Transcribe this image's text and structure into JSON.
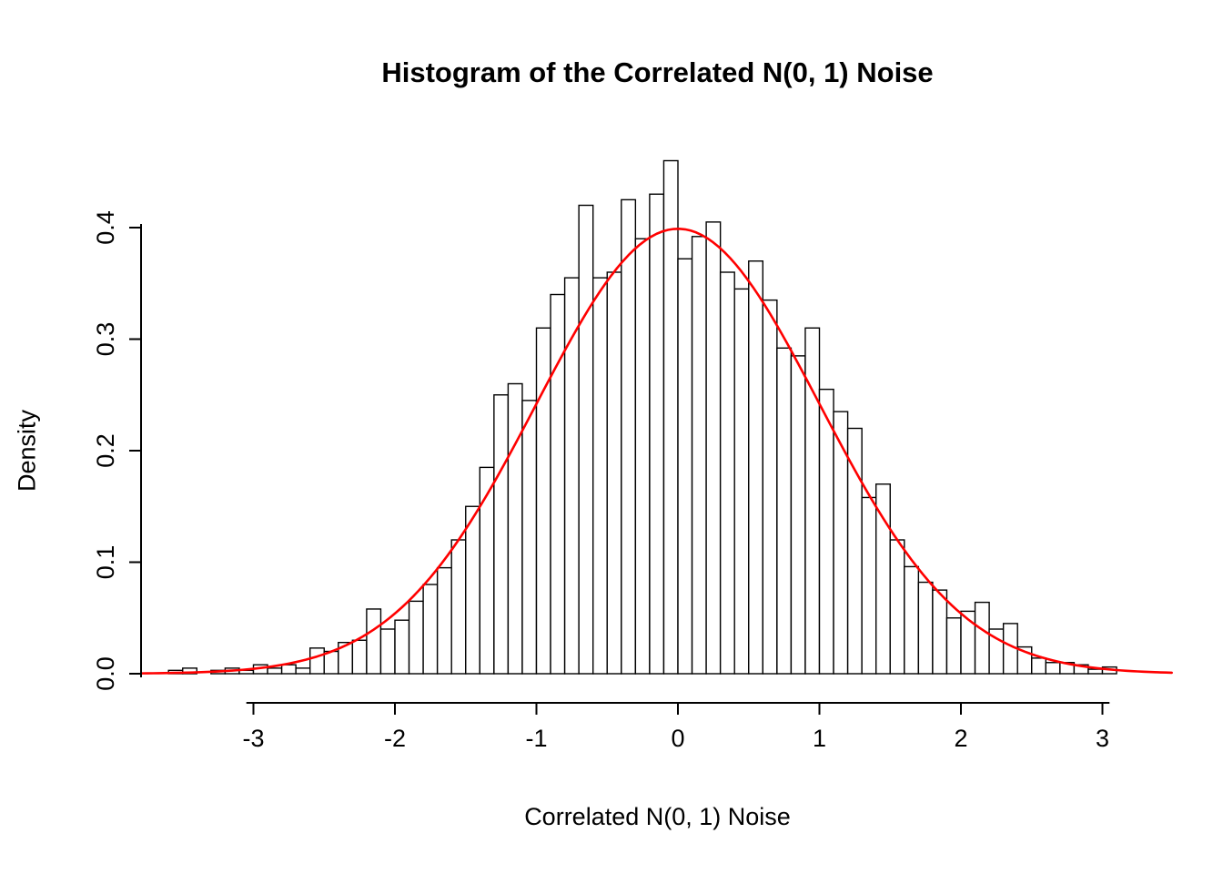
{
  "chart_data": {
    "type": "bar",
    "subtype": "histogram-with-density-curve",
    "title": "Histogram of the Correlated N(0, 1) Noise",
    "xlabel": "Correlated N(0, 1) Noise",
    "ylabel": "Density",
    "bin_start": -3.6,
    "bin_width": 0.1,
    "densities": [
      0.003,
      0.005,
      0.0,
      0.003,
      0.005,
      0.003,
      0.008,
      0.005,
      0.008,
      0.005,
      0.023,
      0.02,
      0.028,
      0.03,
      0.058,
      0.04,
      0.048,
      0.065,
      0.08,
      0.095,
      0.12,
      0.15,
      0.185,
      0.25,
      0.26,
      0.245,
      0.31,
      0.34,
      0.355,
      0.42,
      0.355,
      0.36,
      0.425,
      0.39,
      0.43,
      0.46,
      0.372,
      0.392,
      0.405,
      0.36,
      0.345,
      0.37,
      0.335,
      0.292,
      0.285,
      0.31,
      0.255,
      0.235,
      0.22,
      0.158,
      0.17,
      0.12,
      0.096,
      0.082,
      0.075,
      0.05,
      0.056,
      0.064,
      0.04,
      0.045,
      0.024,
      0.014,
      0.01,
      0.01,
      0.008,
      0.004,
      0.006
    ],
    "x_ticks": [
      -3,
      -2,
      -1,
      0,
      1,
      2,
      3
    ],
    "y_ticks": [
      0.0,
      0.1,
      0.2,
      0.3,
      0.4
    ],
    "xlim": [
      -3.8,
      3.5
    ],
    "ylim": [
      0,
      0.47
    ],
    "grid": false,
    "legend": "none",
    "curve": {
      "kind": "normal-density",
      "mean": 0,
      "sd": 1,
      "x_from": -3.79,
      "x_to": 3.5,
      "color": "#ff0000"
    },
    "bar_fill": "#ffffff",
    "bar_stroke": "#000000",
    "axis_color": "#000000"
  }
}
